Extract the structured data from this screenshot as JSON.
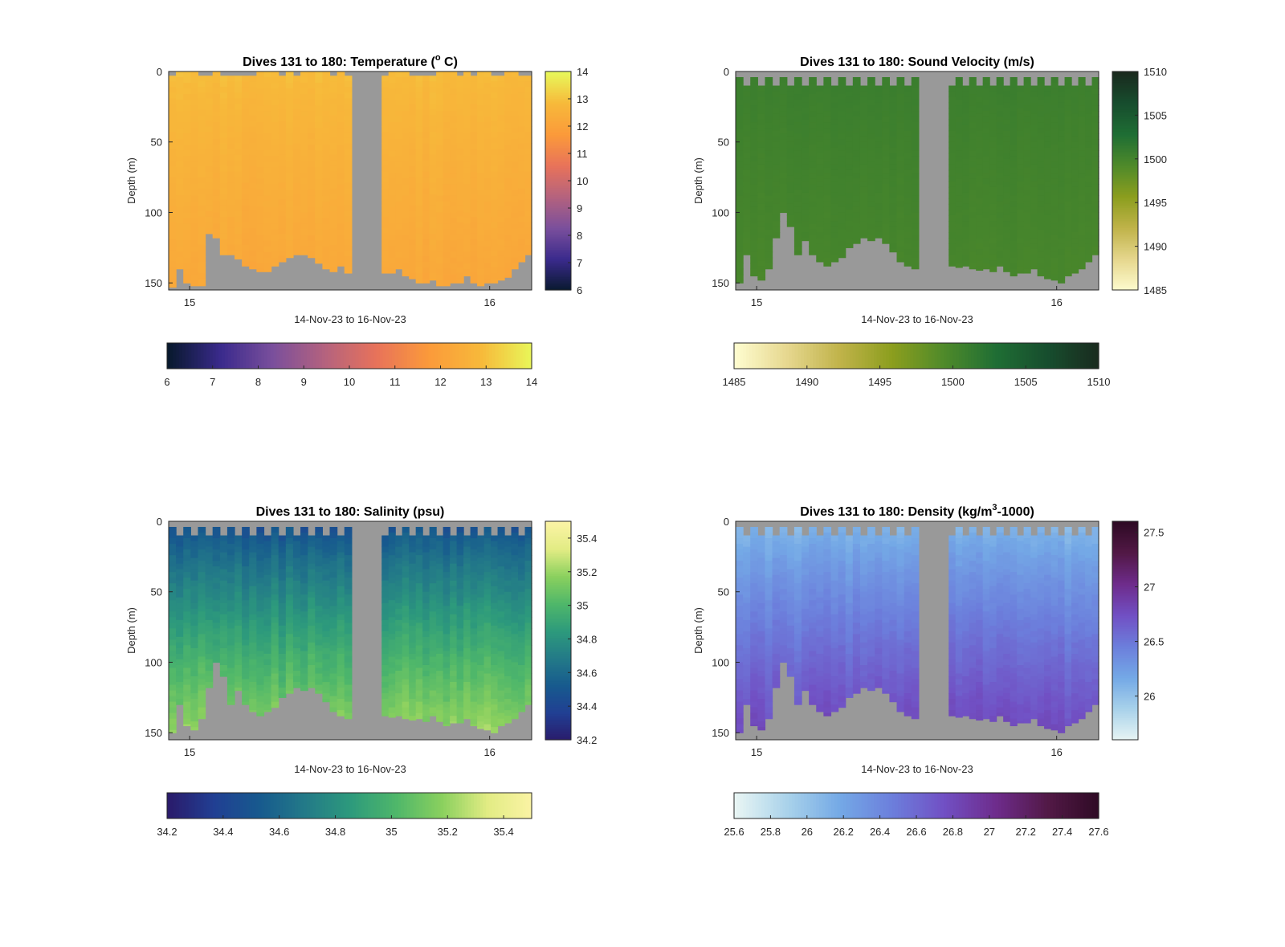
{
  "chart_data": [
    {
      "type": "heatmap",
      "title": "Dives 131 to 180: Temperature (° C)",
      "title_parts": [
        "Dives 131 to 180: Temperature (",
        "o",
        " C)"
      ],
      "xlabel": "14-Nov-23 to 16-Nov-23",
      "ylabel": "Depth (m)",
      "xlim": [
        14.93,
        16.14
      ],
      "xticks": [
        "15",
        "16"
      ],
      "xtick_values": [
        15,
        16
      ],
      "ylim": [
        0,
        155
      ],
      "yticks": [
        0,
        50,
        100,
        150
      ],
      "y_reversed": true,
      "gap_x": [
        15.54,
        15.64
      ],
      "top_bin_pattern": "irregular",
      "profile_bottom_depths": [
        153,
        140,
        150,
        152,
        152,
        115,
        118,
        130,
        130,
        133,
        138,
        140,
        142,
        142,
        138,
        135,
        132,
        130,
        130,
        132,
        136,
        140,
        142,
        138,
        143,
        143,
        143,
        140,
        145,
        147,
        150,
        150,
        148,
        152,
        152,
        150,
        150,
        145,
        150,
        152,
        150,
        150,
        148,
        146,
        140,
        135,
        130
      ],
      "colormap": [
        "#08192e",
        "#3a2a8c",
        "#7a4f9c",
        "#b4627e",
        "#e8735a",
        "#fb9a3a",
        "#f7b93a",
        "#e8f85a"
      ],
      "clim": [
        6,
        14
      ],
      "data_range": [
        11.5,
        13.2
      ],
      "shallow_value": 12.9,
      "deep_value": 12.2,
      "colorbar_ticks": [
        6,
        7,
        8,
        9,
        10,
        11,
        12,
        13,
        14
      ]
    },
    {
      "type": "heatmap",
      "title": "Dives 131 to 180: Sound Velocity (m/s)",
      "title_parts": [
        "Dives 131 to 180: Sound Velocity (m/s)"
      ],
      "xlabel": "14-Nov-23 to 16-Nov-23",
      "ylabel": "Depth (m)",
      "xlim": [
        14.93,
        16.14
      ],
      "xticks": [
        "15",
        "16"
      ],
      "xtick_values": [
        15,
        16
      ],
      "ylim": [
        0,
        155
      ],
      "yticks": [
        0,
        50,
        100,
        150
      ],
      "y_reversed": true,
      "gap_x": [
        15.54,
        15.64
      ],
      "top_bin_pattern": "comb",
      "profile_bottom_depths": [
        150,
        130,
        145,
        148,
        140,
        118,
        100,
        110,
        130,
        120,
        130,
        135,
        138,
        135,
        132,
        125,
        122,
        118,
        120,
        118,
        122,
        128,
        135,
        138,
        140,
        138,
        139,
        138,
        140,
        141,
        140,
        142,
        138,
        142,
        145,
        143,
        143,
        140,
        145,
        147,
        148,
        150,
        145,
        143,
        140,
        135,
        130
      ],
      "colormap": [
        "#fefccf",
        "#e6d78e",
        "#c0b34a",
        "#8c9e1e",
        "#4f8a2a",
        "#1f6e34",
        "#174d2e",
        "#1a2a1e"
      ],
      "clim": [
        1485,
        1510
      ],
      "data_range": [
        1499,
        1501.5
      ],
      "shallow_value": 1500.8,
      "deep_value": 1499.8,
      "colorbar_ticks": [
        1485,
        1490,
        1495,
        1500,
        1505,
        1510
      ]
    },
    {
      "type": "heatmap",
      "title": "Dives 131 to 180: Salinity (psu)",
      "title_parts": [
        "Dives 131 to 180: Salinity (psu)"
      ],
      "xlabel": "14-Nov-23 to 16-Nov-23",
      "ylabel": "Depth (m)",
      "xlim": [
        14.93,
        16.14
      ],
      "xticks": [
        "15",
        "16"
      ],
      "xtick_values": [
        15,
        16
      ],
      "ylim": [
        0,
        155
      ],
      "yticks": [
        0,
        50,
        100,
        150
      ],
      "y_reversed": true,
      "gap_x": [
        15.54,
        15.64
      ],
      "top_bin_pattern": "comb",
      "profile_bottom_depths": [
        150,
        130,
        145,
        148,
        140,
        118,
        100,
        110,
        130,
        120,
        130,
        135,
        138,
        135,
        132,
        125,
        122,
        118,
        120,
        118,
        122,
        128,
        135,
        138,
        140,
        138,
        139,
        138,
        140,
        141,
        140,
        142,
        138,
        142,
        145,
        143,
        143,
        140,
        145,
        147,
        148,
        150,
        145,
        143,
        140,
        135,
        130
      ],
      "colormap": [
        "#2a1b6b",
        "#213f93",
        "#175a8e",
        "#237a88",
        "#2d9a7c",
        "#4fb76a",
        "#8ad05e",
        "#e2ec84",
        "#fbf3a5"
      ],
      "clim": [
        34.2,
        35.5
      ],
      "data_range": [
        34.35,
        35.25
      ],
      "shallow_value": 34.45,
      "deep_value": 35.2,
      "colorbar_ticks": [
        34.2,
        34.4,
        34.6,
        34.8,
        35,
        35.2,
        35.4
      ]
    },
    {
      "type": "heatmap",
      "title": "Dives 131 to 180: Density (kg/m3-1000)",
      "title_parts": [
        "Dives 131 to 180: Density (kg/m",
        "3",
        "-1000)"
      ],
      "xlabel": "14-Nov-23 to 16-Nov-23",
      "ylabel": "Depth (m)",
      "xlim": [
        14.93,
        16.14
      ],
      "xticks": [
        "15",
        "16"
      ],
      "xtick_values": [
        15,
        16
      ],
      "ylim": [
        0,
        155
      ],
      "yticks": [
        0,
        50,
        100,
        150
      ],
      "y_reversed": true,
      "gap_x": [
        15.54,
        15.64
      ],
      "top_bin_pattern": "comb",
      "profile_bottom_depths": [
        150,
        130,
        145,
        148,
        140,
        118,
        100,
        110,
        130,
        120,
        130,
        135,
        138,
        135,
        132,
        125,
        122,
        118,
        120,
        118,
        122,
        128,
        135,
        138,
        140,
        138,
        139,
        138,
        140,
        141,
        140,
        142,
        138,
        142,
        145,
        143,
        143,
        140,
        145,
        147,
        148,
        150,
        145,
        143,
        140,
        135,
        130
      ],
      "colormap": [
        "#e8f5f4",
        "#a9d2ea",
        "#74a9e6",
        "#6c7fdc",
        "#7150c4",
        "#6e2c8c",
        "#521946",
        "#2e0a24"
      ],
      "clim": [
        25.6,
        27.6
      ],
      "data_range": [
        25.9,
        26.9
      ],
      "shallow_value": 26.05,
      "deep_value": 26.8,
      "colorbar_ticks": [
        25.6,
        25.8,
        26,
        26.2,
        26.4,
        26.6,
        26.8,
        27,
        27.2,
        27.4,
        27.6
      ],
      "right_colorbar_ticks": [
        26,
        26.5,
        27,
        27.5
      ]
    }
  ]
}
